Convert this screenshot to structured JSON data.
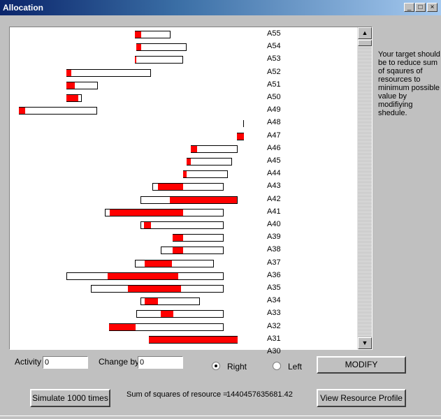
{
  "window": {
    "title": "Allocation"
  },
  "note": "Your target should be to reduce sum of sqaures of resources to minimum possible value by modifiying shedule.",
  "activity_label": "Activity",
  "activity_value": "0",
  "change_label": "Change by",
  "change_value": "0",
  "right_label": "Right",
  "left_label": "Left",
  "direction_selected": "Right",
  "modify_label": "MODIFY",
  "simulate_label": "Simulate 1000 times",
  "sum_label": "Sum of squares of resource =",
  "sum_value": "1440457635681.42",
  "view_profile_label": "View Resource Profile",
  "activities": [
    {
      "name": "A55",
      "box": [
        179,
        230
      ],
      "red": [
        179,
        188
      ]
    },
    {
      "name": "A54",
      "box": [
        181,
        253
      ],
      "red": [
        181,
        188
      ]
    },
    {
      "name": "A53",
      "box": [
        179,
        248
      ],
      "red": [
        179,
        181
      ]
    },
    {
      "name": "A52",
      "box": [
        81,
        202
      ],
      "red": [
        81,
        88
      ]
    },
    {
      "name": "A51",
      "box": [
        81,
        126
      ],
      "red": [
        81,
        93
      ]
    },
    {
      "name": "A50",
      "box": [
        81,
        103
      ],
      "red": [
        81,
        98
      ]
    },
    {
      "name": "A49",
      "box": [
        13,
        125
      ],
      "red": [
        13,
        22
      ]
    },
    {
      "name": "A48",
      "tick": 334
    },
    {
      "name": "A47",
      "box": [
        325,
        335
      ],
      "red": [
        325,
        335
      ]
    },
    {
      "name": "A46",
      "box": [
        259,
        326
      ],
      "red": [
        259,
        268
      ]
    },
    {
      "name": "A45",
      "box": [
        253,
        318
      ],
      "red": [
        253,
        259
      ]
    },
    {
      "name": "A44",
      "box": [
        248,
        312
      ],
      "red": [
        248,
        253
      ]
    },
    {
      "name": "A43",
      "box": [
        204,
        306
      ],
      "red": [
        212,
        248
      ]
    },
    {
      "name": "A42",
      "box": [
        187,
        326
      ],
      "red": [
        229,
        325
      ]
    },
    {
      "name": "A41",
      "box": [
        136,
        306
      ],
      "red": [
        143,
        248
      ]
    },
    {
      "name": "A40",
      "box": [
        187,
        306
      ],
      "red": [
        192,
        202
      ]
    },
    {
      "name": "A39",
      "box": [
        233,
        306
      ],
      "red": [
        233,
        248
      ]
    },
    {
      "name": "A38",
      "box": [
        216,
        306
      ],
      "red": [
        233,
        248
      ]
    },
    {
      "name": "A37",
      "box": [
        179,
        292
      ],
      "red": [
        193,
        232
      ]
    },
    {
      "name": "A36",
      "box": [
        81,
        306
      ],
      "red": [
        140,
        241
      ]
    },
    {
      "name": "A35",
      "box": [
        116,
        306
      ],
      "red": [
        169,
        245
      ]
    },
    {
      "name": "A34",
      "box": [
        187,
        272
      ],
      "red": [
        193,
        212
      ]
    },
    {
      "name": "A33",
      "box": [
        181,
        306
      ],
      "red": [
        216,
        234
      ]
    },
    {
      "name": "A32",
      "box": [
        142,
        306
      ],
      "red": [
        142,
        180
      ]
    },
    {
      "name": "A31",
      "box": [
        199,
        326
      ],
      "red": [
        199,
        326
      ]
    },
    {
      "name": "A30",
      "box": [
        0,
        0
      ],
      "red": [
        0,
        0
      ]
    }
  ]
}
